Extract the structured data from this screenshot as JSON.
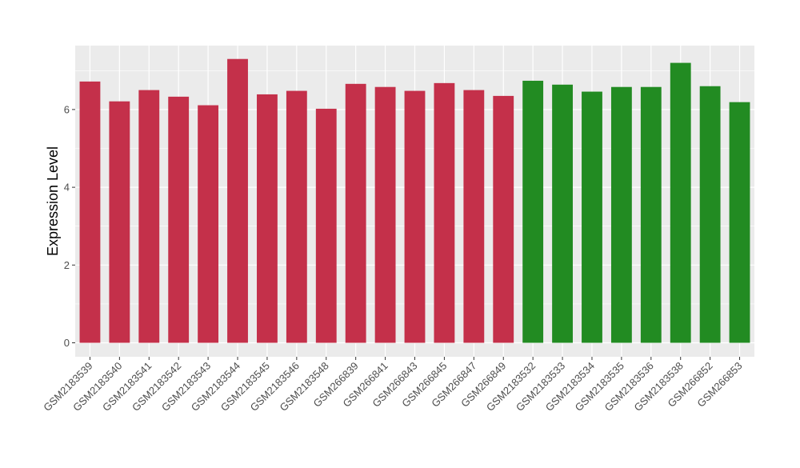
{
  "chart_data": {
    "type": "bar",
    "title": "",
    "xlabel": "",
    "ylabel": "Expression Level",
    "ylim": [
      0,
      7.6
    ],
    "yticks": [
      0,
      2,
      4,
      6
    ],
    "grid": true,
    "legend": "none",
    "colors": {
      "group_1": "#c4304a",
      "group_2": "#228b22",
      "panel_background": "#ebebeb",
      "gridline": "#ffffff",
      "tick": "#333333"
    },
    "categories": [
      "GSM2183539",
      "GSM2183540",
      "GSM2183541",
      "GSM2183542",
      "GSM2183543",
      "GSM2183544",
      "GSM2183545",
      "GSM2183546",
      "GSM2183548",
      "GSM266839",
      "GSM266841",
      "GSM266843",
      "GSM266845",
      "GSM266847",
      "GSM266849",
      "GSM2183532",
      "GSM2183533",
      "GSM2183534",
      "GSM2183535",
      "GSM2183536",
      "GSM2183538",
      "GSM266852",
      "GSM266853"
    ],
    "values": [
      6.72,
      6.21,
      6.5,
      6.33,
      6.11,
      7.3,
      6.39,
      6.48,
      6.02,
      6.66,
      6.58,
      6.48,
      6.68,
      6.5,
      6.35,
      6.74,
      6.64,
      6.46,
      6.58,
      6.58,
      7.2,
      6.6,
      6.19
    ],
    "groups": [
      "group_1",
      "group_1",
      "group_1",
      "group_1",
      "group_1",
      "group_1",
      "group_1",
      "group_1",
      "group_1",
      "group_1",
      "group_1",
      "group_1",
      "group_1",
      "group_1",
      "group_1",
      "group_2",
      "group_2",
      "group_2",
      "group_2",
      "group_2",
      "group_2",
      "group_2",
      "group_2"
    ]
  }
}
